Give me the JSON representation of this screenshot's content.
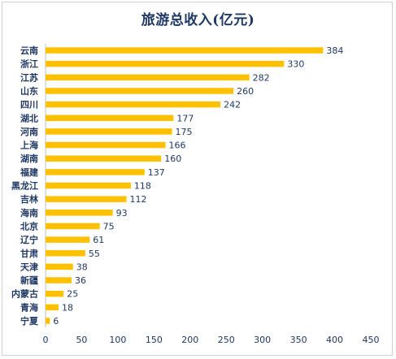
{
  "chart_data": {
    "type": "bar",
    "orientation": "horizontal",
    "title": "旅游总收入(亿元)",
    "categories": [
      "云南",
      "浙江",
      "江苏",
      "山东",
      "四川",
      "湖北",
      "河南",
      "上海",
      "湖南",
      "福建",
      "黑龙江",
      "吉林",
      "海南",
      "北京",
      "辽宁",
      "甘肃",
      "天津",
      "新疆",
      "内蒙古",
      "青海",
      "宁夏"
    ],
    "values": [
      384,
      330,
      282,
      260,
      242,
      177,
      175,
      166,
      160,
      137,
      118,
      112,
      93,
      75,
      61,
      55,
      38,
      36,
      25,
      18,
      6
    ],
    "x_ticks": [
      0,
      50,
      100,
      150,
      200,
      250,
      300,
      350,
      400,
      450
    ],
    "xlim": [
      0,
      450
    ],
    "grid": false,
    "legend": "none",
    "bar_color": "#FFC000",
    "text_color": "#1F3864"
  }
}
